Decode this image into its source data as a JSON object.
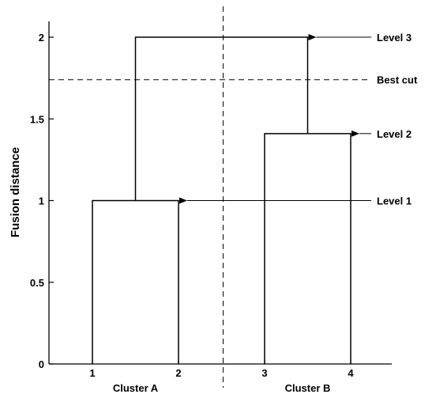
{
  "chart_data": {
    "type": "dendrogram",
    "xlabel": "",
    "ylabel": "Fusion distance",
    "ylim": [
      0,
      2.1
    ],
    "xlim": [
      0.5,
      5.0
    ],
    "yticks": [
      0,
      0.5,
      1,
      1.5,
      2
    ],
    "ytick_labels": [
      "0",
      "0.5",
      "1",
      "1.5",
      "2"
    ],
    "xticks": [
      1,
      2,
      3,
      4
    ],
    "xtick_labels": [
      "1",
      "2",
      "3",
      "4"
    ],
    "leaves": [
      1,
      2,
      3,
      4
    ],
    "merges": [
      {
        "left": 1,
        "right": 2,
        "height": 1.0
      },
      {
        "left": 3,
        "right": 4,
        "height": 1.41
      },
      {
        "left": 1.5,
        "right": 3.5,
        "height": 2.0
      }
    ],
    "cut_height": 1.74,
    "divider_x": 2.5,
    "clusters": [
      {
        "name": "Cluster A",
        "center": 1.5
      },
      {
        "name": "Cluster B",
        "center": 3.5
      }
    ],
    "annotations": [
      {
        "text": "Level 3",
        "y": 2.0,
        "from_x": 3.5
      },
      {
        "text": "Best cut",
        "y": 1.74,
        "from_x": null
      },
      {
        "text": "Level 2",
        "y": 1.41,
        "from_x": 4.0
      },
      {
        "text": "Level 1",
        "y": 1.0,
        "from_x": 2.0
      }
    ],
    "grid": false
  }
}
